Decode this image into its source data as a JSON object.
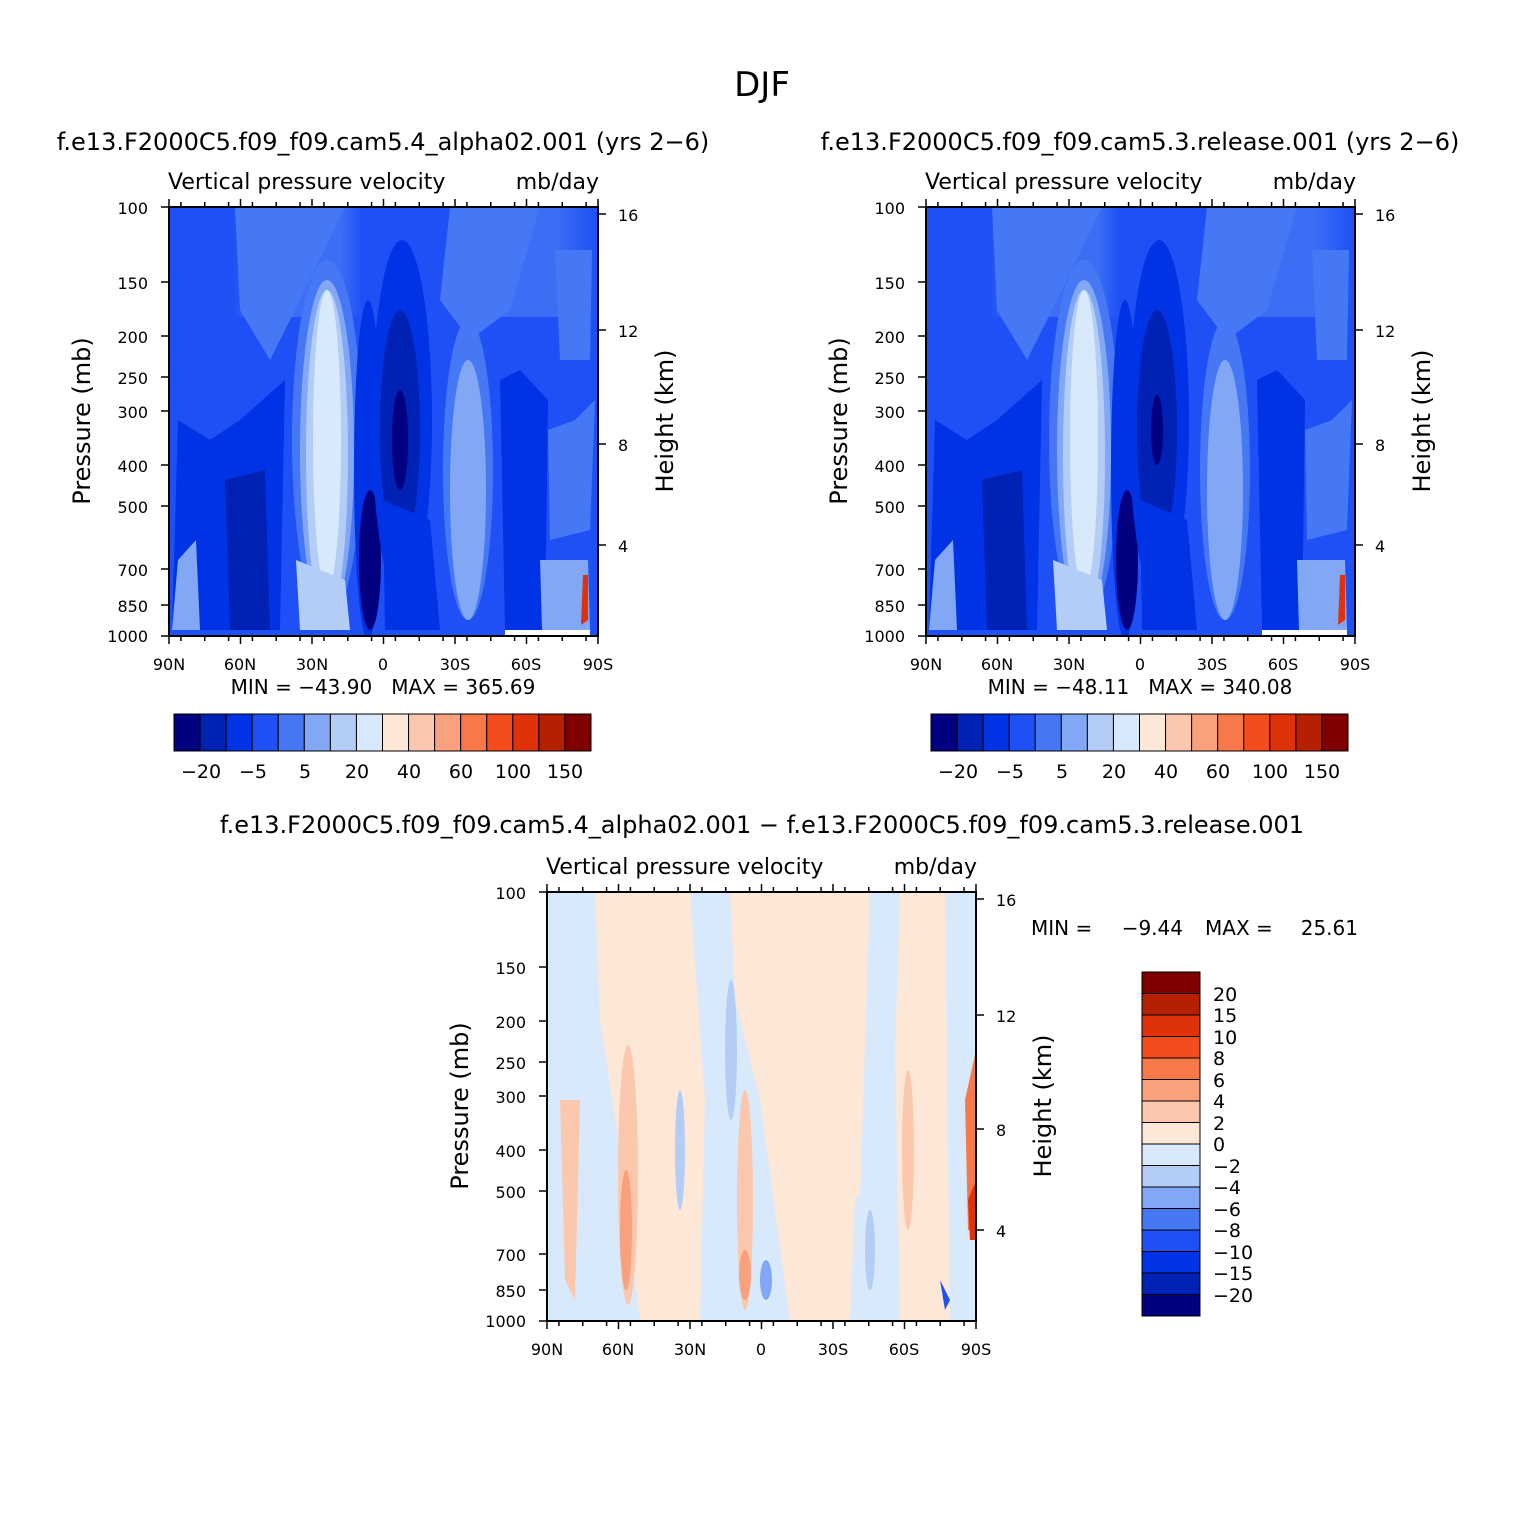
{
  "figure": {
    "title": "DJF"
  },
  "colors": {
    "fill_scale": [
      "#000080",
      "#0022b4",
      "#0032e6",
      "#1e50f5",
      "#4678f5",
      "#82a8f5",
      "#b4cdf7",
      "#d7e9fb",
      "#fde8d8",
      "#fbc8ae",
      "#f9a07c",
      "#f77848",
      "#f54c1e",
      "#e0320a",
      "#b42000",
      "#800000"
    ],
    "diff_scale": [
      "#000080",
      "#0022b4",
      "#0032e6",
      "#1e50f5",
      "#4678f5",
      "#82a8f5",
      "#b4cdf7",
      "#d7e9fb",
      "#fde8d8",
      "#fbc8ae",
      "#f9a07c",
      "#f77848",
      "#f54c1e",
      "#e0320a",
      "#b42000",
      "#800000"
    ]
  },
  "chart_data": [
    {
      "type": "heatmap",
      "panel": "left",
      "case_title": "f.e13.F2000C5.f09_f09.cam5.4_alpha02.001 (yrs 2−6)",
      "title": "Vertical pressure velocity",
      "units": "mb/day",
      "xlabel": "",
      "ylabel": "Pressure (mb)",
      "ylabel_right": "Height (km)",
      "x_ticks": [
        "90N",
        "60N",
        "30N",
        "0",
        "30S",
        "60S",
        "90S"
      ],
      "y_ticks": [
        "100",
        "150",
        "200",
        "250",
        "300",
        "400",
        "500",
        "700",
        "850",
        "1000"
      ],
      "y_right_ticks": [
        "16",
        "12",
        "8",
        "4"
      ],
      "ylim": [
        1000,
        100
      ],
      "y_scale": "log",
      "stats": "MIN = −43.90   MAX = 365.69",
      "colorbar": {
        "orientation": "horizontal",
        "labels": [
          "−20",
          "−5",
          "5",
          "20",
          "40",
          "60",
          "100",
          "150"
        ],
        "levels": [
          "<−20",
          "−20",
          "−10",
          "−5",
          "0",
          "5",
          "10",
          "20",
          "30",
          "40",
          "50",
          "60",
          "80",
          "100",
          "150",
          ">150"
        ]
      }
    },
    {
      "type": "heatmap",
      "panel": "right",
      "case_title": "f.e13.F2000C5.f09_f09.cam5.3.release.001 (yrs 2−6)",
      "title": "Vertical pressure velocity",
      "units": "mb/day",
      "xlabel": "",
      "ylabel": "Pressure (mb)",
      "ylabel_right": "Height (km)",
      "x_ticks": [
        "90N",
        "60N",
        "30N",
        "0",
        "30S",
        "60S",
        "90S"
      ],
      "y_ticks": [
        "100",
        "150",
        "200",
        "250",
        "300",
        "400",
        "500",
        "700",
        "850",
        "1000"
      ],
      "y_right_ticks": [
        "16",
        "12",
        "8",
        "4"
      ],
      "ylim": [
        1000,
        100
      ],
      "y_scale": "log",
      "stats": "MIN = −48.11   MAX = 340.08",
      "colorbar": {
        "orientation": "horizontal",
        "labels": [
          "−20",
          "−5",
          "5",
          "20",
          "40",
          "60",
          "100",
          "150"
        ],
        "levels": [
          "<−20",
          "−20",
          "−10",
          "−5",
          "0",
          "5",
          "10",
          "20",
          "30",
          "40",
          "50",
          "60",
          "80",
          "100",
          "150",
          ">150"
        ]
      }
    },
    {
      "type": "heatmap",
      "panel": "difference",
      "case_title": "f.e13.F2000C5.f09_f09.cam5.4_alpha02.001 − f.e13.F2000C5.f09_f09.cam5.3.release.001",
      "title": "Vertical pressure velocity",
      "units": "mb/day",
      "xlabel": "",
      "ylabel": "Pressure (mb)",
      "ylabel_right": "Height (km)",
      "x_ticks": [
        "90N",
        "60N",
        "30N",
        "0",
        "30S",
        "60S",
        "90S"
      ],
      "y_ticks": [
        "100",
        "150",
        "200",
        "250",
        "300",
        "400",
        "500",
        "700",
        "850",
        "1000"
      ],
      "y_right_ticks": [
        "16",
        "12",
        "8",
        "4"
      ],
      "ylim": [
        1000,
        100
      ],
      "y_scale": "log",
      "stats_min_label": "MIN =",
      "stats_min": "−9.44",
      "stats_max_label": "MAX =",
      "stats_max": "25.61",
      "colorbar": {
        "orientation": "vertical",
        "labels": [
          "20",
          "15",
          "10",
          "8",
          "6",
          "4",
          "2",
          "0",
          "−2",
          "−4",
          "−6",
          "−8",
          "−10",
          "−15",
          "−20"
        ]
      }
    }
  ]
}
